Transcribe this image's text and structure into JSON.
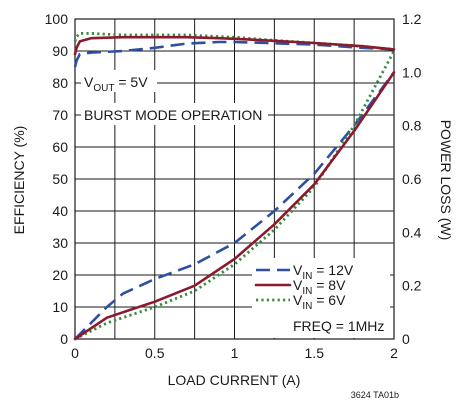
{
  "chart_data": {
    "type": "line",
    "xlabel": "LOAD CURRENT (A)",
    "ylabel_left": "EFFICIENCY (%)",
    "ylabel_right": "POWER LOSS (W)",
    "x_ticks": [
      "0",
      "0.5",
      "1",
      "1.5",
      "2"
    ],
    "y_left_ticks": [
      "0",
      "10",
      "20",
      "30",
      "40",
      "50",
      "60",
      "70",
      "80",
      "90",
      "100"
    ],
    "y_right_ticks": [
      "0",
      "0.2",
      "0.4",
      "0.6",
      "0.8",
      "1.0",
      "1.2"
    ],
    "xlim": [
      0,
      2
    ],
    "ylim_left": [
      0,
      100
    ],
    "ylim_right": [
      0,
      1.2
    ],
    "grid": true,
    "annotations": {
      "vout_prefix": "V",
      "vout_sub": "OUT",
      "vout_suffix": " = 5V",
      "burst_mode": "BURST MODE OPERATION",
      "freq": "FREQ = 1MHz"
    },
    "legend": [
      {
        "prefix": "V",
        "sub": "IN",
        "suffix": " = 12V",
        "style": "dashed",
        "color": "#2e4fa3"
      },
      {
        "prefix": "V",
        "sub": "IN",
        "suffix": " = 8V",
        "style": "solid",
        "color": "#8b1a2e"
      },
      {
        "prefix": "V",
        "sub": "IN",
        "suffix": " = 6V",
        "style": "dotted",
        "color": "#3a8a3c"
      }
    ],
    "series": [
      {
        "name": "VIN = 12V",
        "kind": "efficiency",
        "axis": "left",
        "style": "dashed",
        "color": "#2e4fa3",
        "x": [
          0,
          0.01,
          0.03,
          0.1,
          0.3,
          0.5,
          0.7,
          0.9,
          1.0,
          1.2,
          1.5,
          1.8,
          2.0
        ],
        "y": [
          85,
          87,
          89,
          89.5,
          90,
          91,
          92.3,
          92.8,
          92.8,
          92.5,
          92,
          91,
          90.5
        ]
      },
      {
        "name": "VIN = 8V",
        "kind": "efficiency",
        "axis": "left",
        "style": "solid",
        "color": "#8b1a2e",
        "x": [
          0,
          0.01,
          0.03,
          0.1,
          0.3,
          0.5,
          0.7,
          0.9,
          1.0,
          1.2,
          1.5,
          1.8,
          2.0
        ],
        "y": [
          89,
          91,
          93,
          94,
          94.3,
          94.3,
          94.3,
          94,
          93.8,
          93.3,
          92.5,
          91.5,
          90.5
        ]
      },
      {
        "name": "VIN = 6V",
        "kind": "efficiency",
        "axis": "left",
        "style": "dotted",
        "color": "#3a8a3c",
        "x": [
          0,
          0.01,
          0.03,
          0.1,
          0.3,
          0.5,
          0.7,
          0.9,
          1.0,
          1.2,
          1.5,
          1.8,
          2.0
        ],
        "y": [
          93,
          94.5,
          95.5,
          95.5,
          95,
          95,
          95,
          94.5,
          94.3,
          93.5,
          92.5,
          91.5,
          90.5
        ]
      },
      {
        "name": "VIN = 12V",
        "kind": "power_loss",
        "axis": "right",
        "style": "dashed",
        "color": "#2e4fa3",
        "x": [
          0,
          0.1,
          0.2,
          0.3,
          0.5,
          0.75,
          1.0,
          1.25,
          1.5,
          1.75,
          2.0
        ],
        "y": [
          0,
          0.06,
          0.12,
          0.17,
          0.225,
          0.28,
          0.36,
          0.48,
          0.62,
          0.8,
          1.0
        ]
      },
      {
        "name": "VIN = 8V",
        "kind": "power_loss",
        "axis": "right",
        "style": "solid",
        "color": "#8b1a2e",
        "x": [
          0,
          0.1,
          0.2,
          0.3,
          0.5,
          0.75,
          1.0,
          1.25,
          1.5,
          1.75,
          2.0
        ],
        "y": [
          0,
          0.04,
          0.08,
          0.1,
          0.14,
          0.2,
          0.3,
          0.43,
          0.58,
          0.78,
          1.0
        ]
      },
      {
        "name": "VIN = 6V",
        "kind": "power_loss",
        "axis": "right",
        "style": "dotted",
        "color": "#3a8a3c",
        "x": [
          0,
          0.1,
          0.2,
          0.3,
          0.5,
          0.75,
          1.0,
          1.25,
          1.5,
          1.75,
          2.0
        ],
        "y": [
          0,
          0.03,
          0.06,
          0.08,
          0.12,
          0.18,
          0.28,
          0.41,
          0.57,
          0.8,
          1.08
        ]
      }
    ],
    "footnote": "3624 TA01b"
  }
}
